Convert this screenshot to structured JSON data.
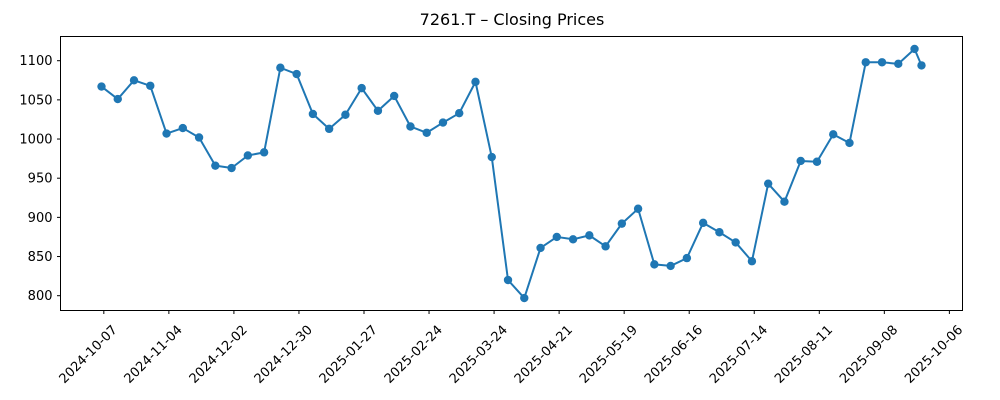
{
  "figure": {
    "title": "7261.T – Closing Prices",
    "background_color": "#ffffff",
    "axis_color": "#000000",
    "series_color": "#1f77b4"
  },
  "chart_data": {
    "type": "line",
    "title": "7261.T – Closing Prices",
    "xlabel": "",
    "ylabel": "",
    "grid": false,
    "legend": "none",
    "marker": "circle",
    "line_color": "#1f77b4",
    "x": [
      "2024-10-06",
      "2024-10-13",
      "2024-10-20",
      "2024-10-27",
      "2024-11-03",
      "2024-11-10",
      "2024-11-17",
      "2024-11-24",
      "2024-12-01",
      "2024-12-08",
      "2024-12-15",
      "2024-12-22",
      "2024-12-29",
      "2025-01-05",
      "2025-01-12",
      "2025-01-19",
      "2025-01-26",
      "2025-02-02",
      "2025-02-09",
      "2025-02-16",
      "2025-02-23",
      "2025-03-02",
      "2025-03-09",
      "2025-03-16",
      "2025-03-23",
      "2025-03-30",
      "2025-04-06",
      "2025-04-13",
      "2025-04-20",
      "2025-04-27",
      "2025-05-04",
      "2025-05-11",
      "2025-05-18",
      "2025-05-25",
      "2025-06-01",
      "2025-06-08",
      "2025-06-15",
      "2025-06-22",
      "2025-06-29",
      "2025-07-06",
      "2025-07-13",
      "2025-07-20",
      "2025-07-27",
      "2025-08-03",
      "2025-08-10",
      "2025-08-17",
      "2025-08-24",
      "2025-08-31",
      "2025-09-07",
      "2025-09-14",
      "2025-09-21",
      "2025-09-24"
    ],
    "values": [
      1067,
      1051,
      1075,
      1068,
      1007,
      1014,
      1002,
      966,
      963,
      979,
      983,
      1091,
      1083,
      1032,
      1013,
      1031,
      1065,
      1036,
      1055,
      1016,
      1008,
      1021,
      1033,
      1073,
      977,
      820,
      797,
      861,
      875,
      872,
      877,
      863,
      892,
      911,
      840,
      838,
      848,
      893,
      881,
      868,
      844,
      943,
      920,
      972,
      971,
      1006,
      995,
      1098,
      1098,
      1096,
      1115,
      1094
    ],
    "x_ticks": [
      "2024-10-07",
      "2024-11-04",
      "2024-12-02",
      "2024-12-30",
      "2025-01-27",
      "2025-02-24",
      "2025-03-24",
      "2025-04-21",
      "2025-05-19",
      "2025-06-16",
      "2025-07-14",
      "2025-08-11",
      "2025-09-08",
      "2025-10-06"
    ],
    "y_ticks": [
      800,
      850,
      900,
      950,
      1000,
      1050,
      1100
    ],
    "x_tick_rotation_deg": 45,
    "margin_fraction": 0.05
  }
}
